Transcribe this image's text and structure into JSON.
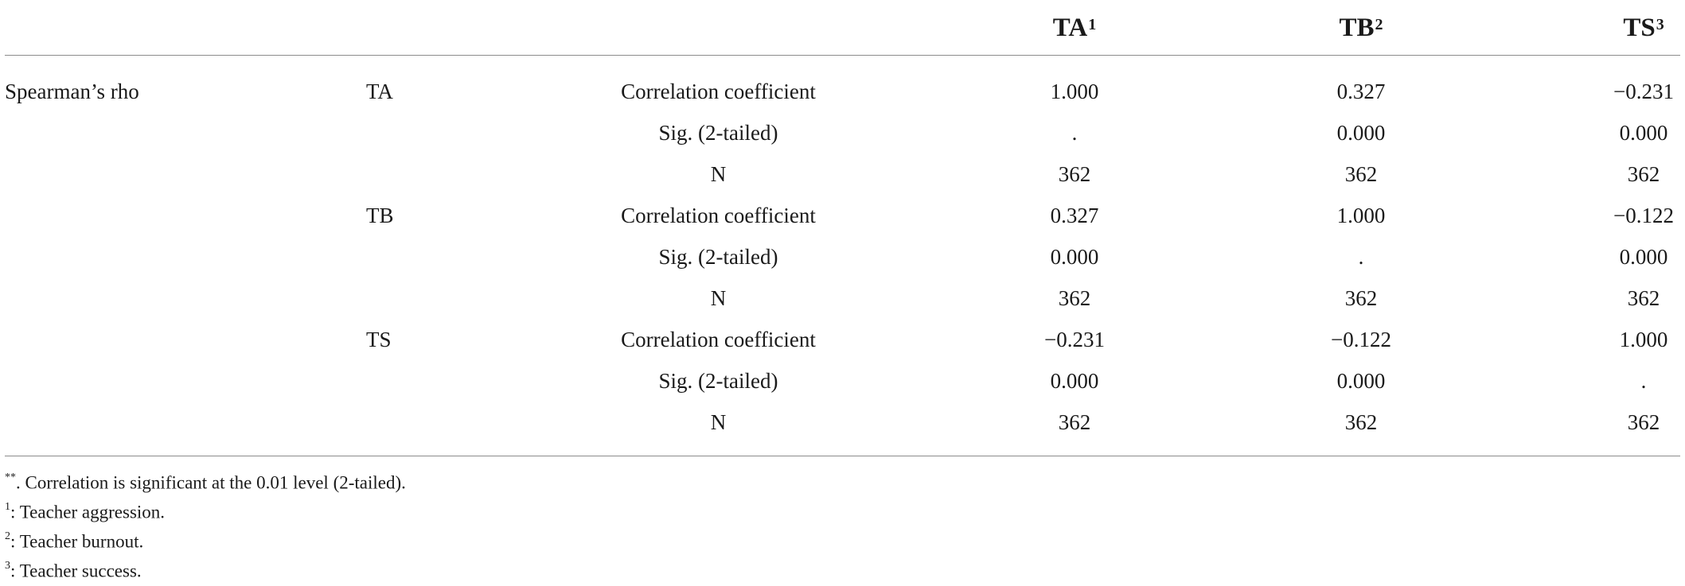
{
  "table": {
    "header": [
      {
        "label": "TA",
        "sup": "1"
      },
      {
        "label": "TB",
        "sup": "2"
      },
      {
        "label": "TS",
        "sup": "3"
      }
    ],
    "group_label": "Spearman’s rho",
    "rows": [
      {
        "var": "TA",
        "stat": "Correlation coefficient",
        "ta": "1.000",
        "tb": "0.327",
        "ts": "−0.231"
      },
      {
        "var": "",
        "stat": "Sig. (2-tailed)",
        "ta": ".",
        "tb": "0.000",
        "ts": "0.000"
      },
      {
        "var": "",
        "stat": "N",
        "ta": "362",
        "tb": "362",
        "ts": "362"
      },
      {
        "var": "TB",
        "stat": "Correlation coefficient",
        "ta": "0.327",
        "tb": "1.000",
        "ts": "−0.122"
      },
      {
        "var": "",
        "stat": "Sig. (2-tailed)",
        "ta": "0.000",
        "tb": ".",
        "ts": "0.000"
      },
      {
        "var": "",
        "stat": "N",
        "ta": "362",
        "tb": "362",
        "ts": "362"
      },
      {
        "var": "TS",
        "stat": "Correlation coefficient",
        "ta": "−0.231",
        "tb": "−0.122",
        "ts": "1.000"
      },
      {
        "var": "",
        "stat": "Sig. (2-tailed)",
        "ta": "0.000",
        "tb": "0.000",
        "ts": "."
      },
      {
        "var": "",
        "stat": "N",
        "ta": "362",
        "tb": "362",
        "ts": "362"
      }
    ]
  },
  "footnotes": [
    {
      "sup": "**",
      "text": ". Correlation is significant at the 0.01 level (2-tailed)."
    },
    {
      "sup": "1",
      "text": ": Teacher aggression."
    },
    {
      "sup": "2",
      "text": ": Teacher burnout."
    },
    {
      "sup": "3",
      "text": ": Teacher success."
    }
  ]
}
